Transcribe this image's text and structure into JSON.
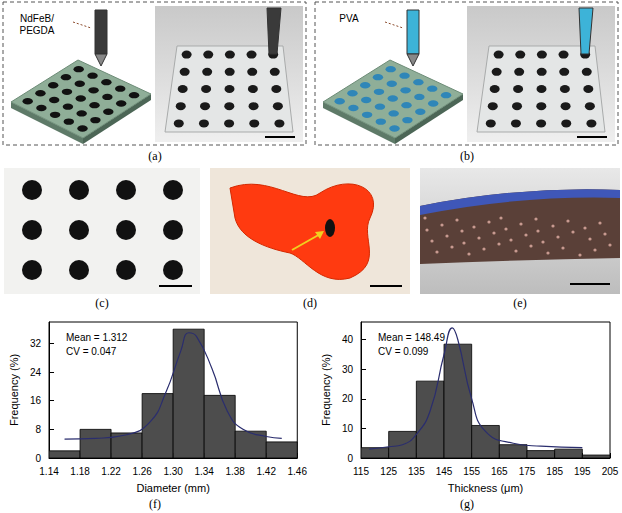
{
  "panels": [
    {
      "label": "(a)",
      "texts": [
        "NdFeB/",
        "PEGDA"
      ]
    },
    {
      "label": "(b)",
      "texts": [
        "PVA"
      ]
    },
    {
      "label": "(c)"
    },
    {
      "label": "(d)"
    },
    {
      "label": "(e)"
    }
  ],
  "chart_data": [
    {
      "type": "histogram",
      "panel_label": "(f)",
      "x_label": "Diameter (mm)",
      "y_label": "Frequency (%)",
      "bins": [
        1.14,
        1.18,
        1.22,
        1.26,
        1.3,
        1.34,
        1.38,
        1.42,
        1.46
      ],
      "values": [
        2,
        8,
        7,
        18,
        36,
        17.5,
        7.5,
        4.5
      ],
      "color": "#4d4d4d",
      "fit": {
        "x": [
          1.16,
          1.2,
          1.24,
          1.27,
          1.29,
          1.31,
          1.32,
          1.33,
          1.35,
          1.37,
          1.39,
          1.42,
          1.44
        ],
        "values": [
          5.3,
          5.5,
          6.5,
          10,
          18,
          30,
          35,
          34,
          25,
          13,
          8,
          6,
          5.5
        ],
        "color": "#2a2d6e"
      },
      "annotations": [
        "Mean = 1.312",
        "CV = 0.047"
      ],
      "xlim": [
        1.14,
        1.46
      ],
      "xticks": [
        1.14,
        1.18,
        1.22,
        1.26,
        {
          "value": 1.3,
          "label": "1.30"
        },
        1.34,
        1.38,
        1.42,
        1.46
      ],
      "ylim": [
        0,
        38
      ],
      "yticks": [
        0,
        8,
        16,
        24,
        32
      ],
      "grid": false
    },
    {
      "type": "histogram",
      "panel_label": "(g)",
      "x_label": "Thickness (μm)",
      "y_label": "Frequency (%)",
      "bins": [
        115,
        125,
        135,
        145,
        155,
        165,
        175,
        185,
        195,
        205
      ],
      "values": [
        3.5,
        9,
        26,
        38.5,
        11,
        4.5,
        2.5,
        3,
        1
      ],
      "color": "#4d4d4d",
      "fit": {
        "x": [
          118,
          125,
          130,
          135,
          140,
          145,
          148,
          150,
          155,
          160,
          170,
          180,
          195
        ],
        "values": [
          3,
          3.8,
          4.5,
          8,
          16,
          35,
          44,
          40,
          20,
          9,
          5,
          4,
          3.5
        ],
        "color": "#2a2d6e"
      },
      "annotations": [
        "Mean = 148.49",
        "CV = 0.099"
      ],
      "xlim": [
        115,
        205
      ],
      "xticks": [
        115,
        125,
        135,
        145,
        155,
        165,
        175,
        185,
        195,
        205
      ],
      "ylim": [
        0,
        46
      ],
      "yticks": [
        0,
        10,
        20,
        30,
        40
      ],
      "grid": false
    }
  ]
}
